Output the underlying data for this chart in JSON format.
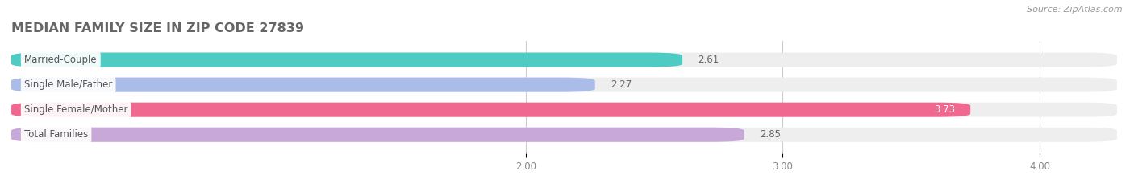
{
  "title": "MEDIAN FAMILY SIZE IN ZIP CODE 27839",
  "source": "Source: ZipAtlas.com",
  "categories": [
    "Married-Couple",
    "Single Male/Father",
    "Single Female/Mother",
    "Total Families"
  ],
  "values": [
    2.61,
    2.27,
    3.73,
    2.85
  ],
  "bar_colors": [
    "#4ECCC4",
    "#AABCE8",
    "#F06890",
    "#C8A8D8"
  ],
  "xticks": [
    2.0,
    3.0,
    4.0
  ],
  "xlim_left": 0.0,
  "xlim_right": 4.3,
  "background_color": "#FFFFFF",
  "bar_bg_color": "#EEEEEE",
  "grid_color": "#CCCCCC",
  "label_box_color": "#FFFFFF",
  "label_text_color": "#555555",
  "tick_color": "#888888",
  "title_color": "#666666",
  "source_color": "#999999",
  "value_label_dark": "#666666",
  "value_label_light": "#FFFFFF"
}
